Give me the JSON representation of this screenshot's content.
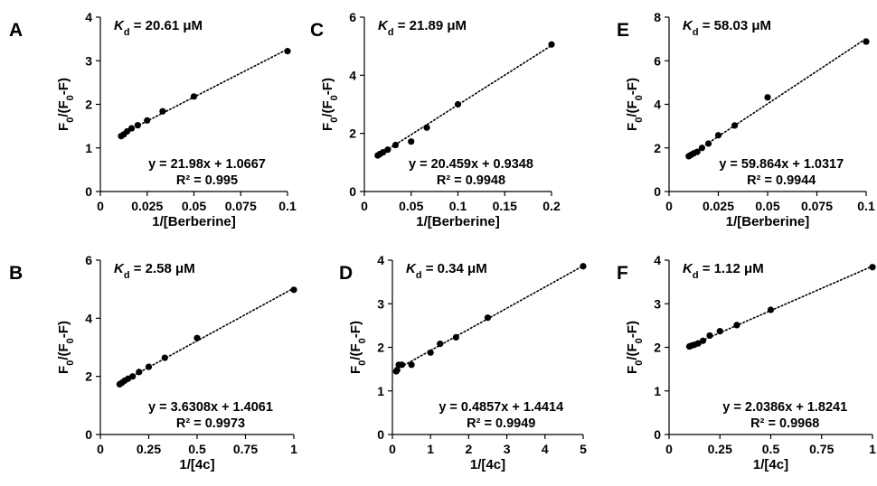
{
  "chart_data": [
    {
      "type": "scatter",
      "panel_label": "A",
      "kd_symbol": "K",
      "kd_subscript": "d",
      "kd_value": " = 20.61 μM",
      "equation": "y = 21.98x + 1.0667",
      "r_squared": "R² = 0.995",
      "xlabel": "1/[Berberine]",
      "ylabel": {
        "base": "F",
        "sub1": "0",
        "mid": "/(F",
        "sub2": "0",
        "end": "-F)"
      },
      "xlim": [
        0,
        0.1
      ],
      "ylim": [
        0,
        4
      ],
      "xticks": [
        0,
        0.025,
        0.05,
        0.075,
        0.1
      ],
      "xtick_labels": [
        "0",
        "0.025",
        "0.05",
        "0.075",
        "0.1"
      ],
      "yticks": [
        0,
        1,
        2,
        3,
        4
      ],
      "ytick_labels": [
        "0",
        "1",
        "2",
        "3",
        "4"
      ],
      "trendline": {
        "slope": 21.98,
        "intercept": 1.0667,
        "style": "dotted",
        "x_range": [
          0.01,
          0.1
        ]
      },
      "points": [
        {
          "x": 0.0111,
          "y": 1.27
        },
        {
          "x": 0.0125,
          "y": 1.31
        },
        {
          "x": 0.0143,
          "y": 1.38
        },
        {
          "x": 0.0167,
          "y": 1.45
        },
        {
          "x": 0.02,
          "y": 1.52
        },
        {
          "x": 0.025,
          "y": 1.63
        },
        {
          "x": 0.0333,
          "y": 1.84
        },
        {
          "x": 0.05,
          "y": 2.18
        },
        {
          "x": 0.1,
          "y": 3.22
        }
      ],
      "grid": false
    },
    {
      "type": "scatter",
      "panel_label": "C",
      "kd_symbol": "K",
      "kd_subscript": "d",
      "kd_value": " = 21.89 μM",
      "equation": "y = 20.459x + 0.9348",
      "r_squared": "R² = 0.9948",
      "xlabel": "1/[Berberine]",
      "ylabel": {
        "base": "F",
        "sub1": "0",
        "mid": "/(F",
        "sub2": "0",
        "end": "-F)"
      },
      "xlim": [
        0,
        0.2
      ],
      "ylim": [
        0,
        6
      ],
      "xticks": [
        0,
        0.05,
        0.1,
        0.15,
        0.2
      ],
      "xtick_labels": [
        "0",
        "0.05",
        "0.1",
        "0.15",
        "0.2"
      ],
      "yticks": [
        0,
        2,
        4,
        6
      ],
      "ytick_labels": [
        "0",
        "2",
        "4",
        "6"
      ],
      "trendline": {
        "slope": 20.459,
        "intercept": 0.9348,
        "style": "dotted",
        "x_range": [
          0.0125,
          0.2
        ]
      },
      "points": [
        {
          "x": 0.0143,
          "y": 1.24
        },
        {
          "x": 0.0167,
          "y": 1.29
        },
        {
          "x": 0.02,
          "y": 1.35
        },
        {
          "x": 0.025,
          "y": 1.44
        },
        {
          "x": 0.0333,
          "y": 1.6
        },
        {
          "x": 0.05,
          "y": 1.72
        },
        {
          "x": 0.0667,
          "y": 2.2
        },
        {
          "x": 0.1,
          "y": 3.0
        },
        {
          "x": 0.2,
          "y": 5.06
        }
      ],
      "grid": false
    },
    {
      "type": "scatter",
      "panel_label": "E",
      "kd_symbol": "K",
      "kd_subscript": "d",
      "kd_value": " = 58.03 μM",
      "equation": "y = 59.864x + 1.0317",
      "r_squared": "R² = 0.9944",
      "xlabel": "1/[Berberine]",
      "ylabel": {
        "base": "F",
        "sub1": "0",
        "mid": "/(F",
        "sub2": "0",
        "end": "-F)"
      },
      "xlim": [
        0,
        0.1
      ],
      "ylim": [
        0,
        8
      ],
      "xticks": [
        0,
        0.025,
        0.05,
        0.075,
        0.1
      ],
      "xtick_labels": [
        "0",
        "0.025",
        "0.05",
        "0.075",
        "0.1"
      ],
      "yticks": [
        0,
        2,
        4,
        6,
        8
      ],
      "ytick_labels": [
        "0",
        "2",
        "4",
        "6",
        "8"
      ],
      "trendline": {
        "slope": 59.864,
        "intercept": 1.0317,
        "style": "dotted",
        "x_range": [
          0.009,
          0.1
        ]
      },
      "points": [
        {
          "x": 0.01,
          "y": 1.62
        },
        {
          "x": 0.0111,
          "y": 1.68
        },
        {
          "x": 0.0125,
          "y": 1.75
        },
        {
          "x": 0.0143,
          "y": 1.82
        },
        {
          "x": 0.0167,
          "y": 2.0
        },
        {
          "x": 0.02,
          "y": 2.2
        },
        {
          "x": 0.025,
          "y": 2.58
        },
        {
          "x": 0.0333,
          "y": 3.03
        },
        {
          "x": 0.05,
          "y": 4.32
        },
        {
          "x": 0.1,
          "y": 6.88
        }
      ],
      "grid": false
    },
    {
      "type": "scatter",
      "panel_label": "B",
      "kd_symbol": "K",
      "kd_subscript": "d",
      "kd_value": " = 2.58 μM",
      "equation": "y = 3.6308x + 1.4061",
      "r_squared": "R² = 0.9973",
      "xlabel": "1/[4c]",
      "ylabel": {
        "base": "F",
        "sub1": "0",
        "mid": "/(F",
        "sub2": "0",
        "end": "-F)"
      },
      "xlim": [
        0,
        1
      ],
      "ylim": [
        0,
        6
      ],
      "xticks": [
        0,
        0.25,
        0.5,
        0.75,
        1
      ],
      "xtick_labels": [
        "0",
        "0.25",
        "0.5",
        "0.75",
        "1"
      ],
      "yticks": [
        0,
        2,
        4,
        6
      ],
      "ytick_labels": [
        "0",
        "2",
        "4",
        "6"
      ],
      "trendline": {
        "slope": 3.6308,
        "intercept": 1.4061,
        "style": "dotted",
        "x_range": [
          0.1,
          1
        ]
      },
      "points": [
        {
          "x": 0.1,
          "y": 1.73
        },
        {
          "x": 0.111,
          "y": 1.78
        },
        {
          "x": 0.125,
          "y": 1.85
        },
        {
          "x": 0.143,
          "y": 1.92
        },
        {
          "x": 0.167,
          "y": 2.0
        },
        {
          "x": 0.2,
          "y": 2.15
        },
        {
          "x": 0.25,
          "y": 2.33
        },
        {
          "x": 0.333,
          "y": 2.64
        },
        {
          "x": 0.5,
          "y": 3.32
        },
        {
          "x": 1.0,
          "y": 4.98
        }
      ],
      "grid": false
    },
    {
      "type": "scatter",
      "panel_label": "D",
      "kd_symbol": "K",
      "kd_subscript": "d",
      "kd_value": " = 0.34 μM",
      "equation": "y = 0.4857x + 1.4414",
      "r_squared": "R² = 0.9949",
      "xlabel": "1/[4c]",
      "ylabel": {
        "base": "F",
        "sub1": "0",
        "mid": "/(F",
        "sub2": "0",
        "end": "-F)"
      },
      "xlim": [
        0,
        5
      ],
      "ylim": [
        0,
        4
      ],
      "xticks": [
        0,
        1,
        2,
        3,
        4,
        5
      ],
      "xtick_labels": [
        "0",
        "1",
        "2",
        "3",
        "4",
        "5"
      ],
      "yticks": [
        0,
        1,
        2,
        3,
        4
      ],
      "ytick_labels": [
        "0",
        "1",
        "2",
        "3",
        "4"
      ],
      "trendline": {
        "slope": 0.4857,
        "intercept": 1.4414,
        "style": "dotted",
        "x_range": [
          0.05,
          5
        ]
      },
      "points": [
        {
          "x": 0.1,
          "y": 1.45
        },
        {
          "x": 0.125,
          "y": 1.48
        },
        {
          "x": 0.167,
          "y": 1.6
        },
        {
          "x": 0.25,
          "y": 1.6
        },
        {
          "x": 0.5,
          "y": 1.6
        },
        {
          "x": 1.0,
          "y": 1.88
        },
        {
          "x": 1.25,
          "y": 2.08
        },
        {
          "x": 1.667,
          "y": 2.23
        },
        {
          "x": 2.5,
          "y": 2.68
        },
        {
          "x": 5.0,
          "y": 3.86
        }
      ],
      "grid": false
    },
    {
      "type": "scatter",
      "panel_label": "F",
      "kd_symbol": "K",
      "kd_subscript": "d",
      "kd_value": " = 1.12 μM",
      "equation": "y = 2.0386x + 1.8241",
      "r_squared": "R² = 0.9968",
      "xlabel": "1/[4c]",
      "ylabel": {
        "base": "F",
        "sub1": "0",
        "mid": "/(F",
        "sub2": "0",
        "end": "-F)"
      },
      "xlim": [
        0,
        1
      ],
      "ylim": [
        0,
        4
      ],
      "xticks": [
        0,
        0.25,
        0.5,
        0.75,
        1
      ],
      "xtick_labels": [
        "0",
        "0.25",
        "0.5",
        "0.75",
        "1"
      ],
      "yticks": [
        0,
        1,
        2,
        3,
        4
      ],
      "ytick_labels": [
        "0",
        "1",
        "2",
        "3",
        "4"
      ],
      "trendline": {
        "slope": 2.0386,
        "intercept": 1.8241,
        "style": "dotted",
        "x_range": [
          0.09,
          1
        ]
      },
      "points": [
        {
          "x": 0.1,
          "y": 2.02
        },
        {
          "x": 0.111,
          "y": 2.04
        },
        {
          "x": 0.125,
          "y": 2.06
        },
        {
          "x": 0.143,
          "y": 2.09
        },
        {
          "x": 0.167,
          "y": 2.15
        },
        {
          "x": 0.2,
          "y": 2.27
        },
        {
          "x": 0.25,
          "y": 2.37
        },
        {
          "x": 0.333,
          "y": 2.51
        },
        {
          "x": 0.5,
          "y": 2.86
        },
        {
          "x": 1.0,
          "y": 3.84
        }
      ],
      "grid": false
    }
  ]
}
